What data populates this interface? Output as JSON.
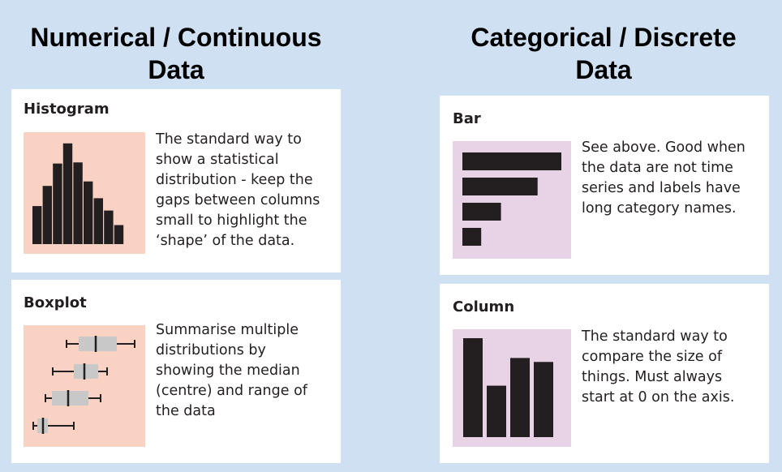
{
  "headings": {
    "left": {
      "line1": "Numerical / Continuous",
      "line2": "Data"
    },
    "right": {
      "line1": "Categorical / Discrete",
      "line2": "Data"
    }
  },
  "cards": {
    "histogram": {
      "title": "Histogram",
      "lines": [
        "The standard way to",
        "show a statistical",
        "distribution - keep the",
        "gaps between columns",
        "small to highlight the",
        "‘shape’ of the data."
      ],
      "thumb_color": "#f9d2c4",
      "bar_heights": [
        0.34,
        0.52,
        0.72,
        0.9,
        0.73,
        0.56,
        0.41,
        0.3,
        0.17
      ]
    },
    "boxplot": {
      "title": "Boxplot",
      "lines": [
        "Summarise multiple",
        "distributions by",
        "showing the median",
        "(centre) and range of",
        "the data"
      ],
      "thumb_color": "#f9d2c4"
    },
    "bar": {
      "title": "Bar",
      "lines": [
        "See above. Good when",
        "the data are not time",
        "series and labels have",
        "long category names."
      ],
      "thumb_color": "#e7d2e6",
      "bar_lengths": [
        1.0,
        0.76,
        0.39,
        0.19
      ]
    },
    "column": {
      "title": "Column",
      "lines": [
        "The standard way to",
        "compare the size of",
        "things. Must always",
        "start at 0 on the axis."
      ],
      "thumb_color": "#e7d2e6",
      "col_heights": [
        1.0,
        0.52,
        0.8,
        0.76
      ]
    }
  },
  "colors": {
    "background": "#cfe0f2",
    "mark": "#231f20",
    "box_fill": "#c8c8c8"
  }
}
